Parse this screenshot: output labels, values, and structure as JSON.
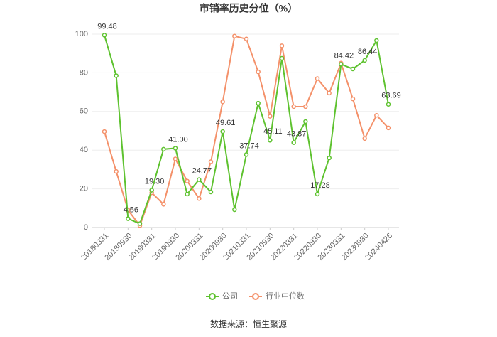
{
  "chart_data": {
    "type": "line",
    "title": "市销率历史分位（%）",
    "categories": [
      "20180331",
      null,
      "20180930",
      null,
      "20190331",
      null,
      "20190930",
      null,
      "20200331",
      null,
      "20200930",
      null,
      "20210331",
      null,
      "20210930",
      null,
      "20220331",
      null,
      "20220930",
      null,
      "20230331",
      null,
      "20230930",
      null,
      "20240426"
    ],
    "series": [
      {
        "name": "公司",
        "color": "#5ec22f",
        "values": [
          99.48,
          78.5,
          4.56,
          2,
          19.3,
          40.5,
          41.0,
          17.3,
          24.77,
          18.4,
          49.61,
          9.2,
          37.74,
          64.3,
          45.11,
          87.5,
          43.87,
          54.8,
          17.28,
          36,
          84.42,
          82,
          86.44,
          96.7,
          63.69
        ],
        "value_labels": [
          "99.48",
          null,
          "4.56",
          null,
          "19.30",
          null,
          "41.00",
          null,
          "24.77",
          null,
          "49.61",
          null,
          "37.74",
          null,
          "45.11",
          null,
          "43.87",
          null,
          "17.28",
          null,
          "84.42",
          null,
          "86.44",
          null,
          "63.69"
        ]
      },
      {
        "name": "行业中位数",
        "color": "#f4916a",
        "values": [
          49.6,
          29,
          9,
          1,
          18,
          12,
          35.5,
          24,
          15,
          34,
          65,
          99,
          97.5,
          80.5,
          57.5,
          94,
          62.5,
          62.5,
          77,
          69.5,
          85,
          66.5,
          46,
          58,
          51.5
        ]
      }
    ],
    "ylim": [
      0,
      100
    ],
    "yticks": [
      0,
      20,
      40,
      60,
      80,
      100
    ],
    "grid": true,
    "legend": "bottom",
    "source": "数据来源：恒生聚源"
  }
}
